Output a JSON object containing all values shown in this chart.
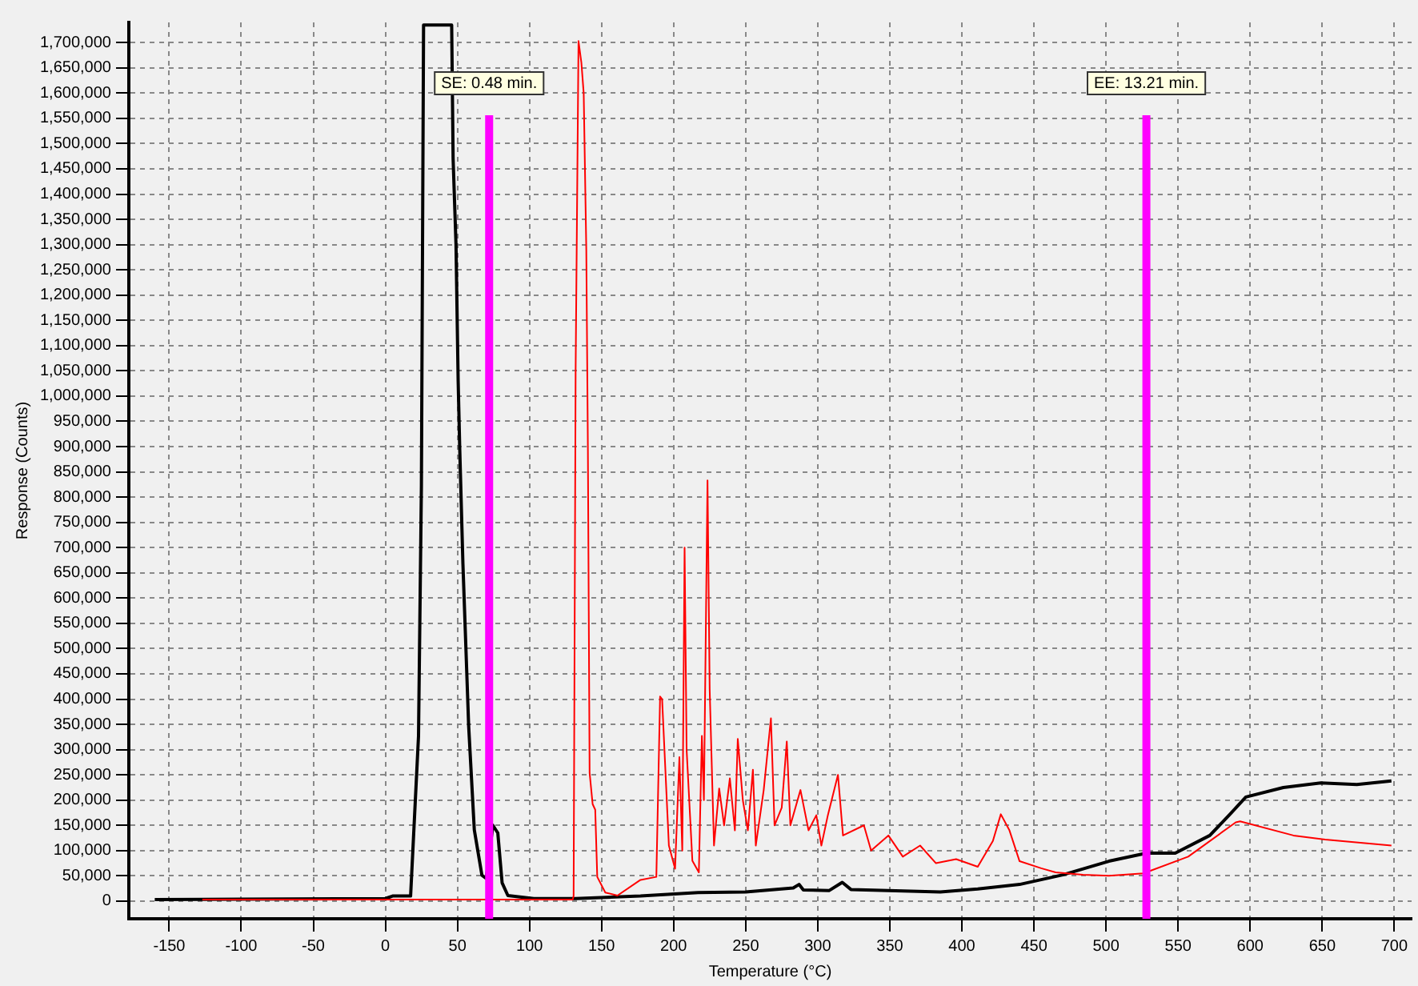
{
  "chart_data": {
    "type": "line",
    "xlabel": "Temperature (°C)",
    "ylabel": "Response (Counts)",
    "xlim": [
      -178,
      712
    ],
    "xticks": [
      -150,
      -100,
      -50,
      0,
      50,
      100,
      150,
      200,
      250,
      300,
      350,
      400,
      450,
      500,
      550,
      600,
      650,
      700
    ],
    "ylim": [
      -35000,
      1740000
    ],
    "yticks": [
      {
        "value": 0,
        "label": "0"
      },
      {
        "value": 50000,
        "label": "50,000"
      },
      {
        "value": 100000,
        "label": "100,000"
      },
      {
        "value": 150000,
        "label": "150,000"
      },
      {
        "value": 200000,
        "label": "200,000"
      },
      {
        "value": 250000,
        "label": "250,000"
      },
      {
        "value": 300000,
        "label": "300,000"
      },
      {
        "value": 350000,
        "label": "350,000"
      },
      {
        "value": 400000,
        "label": "400,000"
      },
      {
        "value": 450000,
        "label": "450,000"
      },
      {
        "value": 500000,
        "label": "500,000"
      },
      {
        "value": 550000,
        "label": "550,000"
      },
      {
        "value": 600000,
        "label": "600,000"
      },
      {
        "value": 650000,
        "label": "650,000"
      },
      {
        "value": 700000,
        "label": "700,000"
      },
      {
        "value": 750000,
        "label": "750,000"
      },
      {
        "value": 800000,
        "label": "800,000"
      },
      {
        "value": 850000,
        "label": "850,000"
      },
      {
        "value": 900000,
        "label": "900,000"
      },
      {
        "value": 950000,
        "label": "950,000"
      },
      {
        "value": 1000000,
        "label": "1,000,000"
      },
      {
        "value": 1050000,
        "label": "1,050,000"
      },
      {
        "value": 1100000,
        "label": "1,100,000"
      },
      {
        "value": 1150000,
        "label": "1,150,000"
      },
      {
        "value": 1200000,
        "label": "1,200,000"
      },
      {
        "value": 1250000,
        "label": "1,250,000"
      },
      {
        "value": 1300000,
        "label": "1,300,000"
      },
      {
        "value": 1350000,
        "label": "1,350,000"
      },
      {
        "value": 1400000,
        "label": "1,400,000"
      },
      {
        "value": 1450000,
        "label": "1,450,000"
      },
      {
        "value": 1500000,
        "label": "1,500,000"
      },
      {
        "value": 1550000,
        "label": "1,550,000"
      },
      {
        "value": 1600000,
        "label": "1,600,000"
      },
      {
        "value": 1650000,
        "label": "1,650,000"
      },
      {
        "value": 1700000,
        "label": "1,700,000"
      }
    ],
    "grid": true,
    "marker": "none",
    "ref_lines": [
      {
        "axis": "x",
        "value": 72,
        "color": "#ff00ff"
      },
      {
        "axis": "x",
        "value": 528,
        "color": "#ff00ff"
      }
    ],
    "annotations": [
      "SE: 0.48 min.",
      "EE: 13.21 min."
    ],
    "series": [
      {
        "color": "#ff0000",
        "x": [
          -127,
          0,
          60,
          130,
          130.6,
          132,
          134,
          136,
          137.6,
          139.4,
          140.5,
          141.7,
          143.8,
          145.6,
          147,
          152.6,
          161,
          177,
          188,
          190.6,
          192,
          196.7,
          201,
          204,
          206,
          207.6,
          209,
          213,
          217.5,
          219.6,
          221,
          223.5,
          225,
          228,
          231.6,
          235,
          239,
          242.5,
          244.5,
          248,
          251.5,
          255,
          257,
          262.5,
          267.5,
          270,
          275,
          278.5,
          281,
          288,
          293.6,
          299,
          302.5,
          307,
          314,
          317.5,
          332,
          337,
          349,
          359,
          371,
          382,
          396,
          411,
          421.5,
          427,
          433,
          440,
          455,
          465,
          484,
          502,
          526,
          557,
          590,
          593,
          630,
          652,
          698
        ],
        "values": [
          3000,
          3000,
          3000,
          3000,
          10000,
          1050000,
          1703000,
          1660000,
          1600000,
          1290000,
          900000,
          254000,
          192000,
          181000,
          48000,
          17000,
          11000,
          42000,
          48000,
          405000,
          400000,
          110000,
          64000,
          285000,
          100000,
          700000,
          300000,
          80000,
          57000,
          327000,
          200000,
          833000,
          420000,
          110000,
          223000,
          150000,
          243000,
          140000,
          321000,
          200000,
          140000,
          260000,
          110000,
          220000,
          362000,
          150000,
          185000,
          316000,
          150000,
          220000,
          140000,
          170000,
          110000,
          170000,
          250000,
          130000,
          150000,
          100000,
          130000,
          88000,
          110000,
          75000,
          83000,
          68000,
          119000,
          172000,
          140000,
          79000,
          65000,
          57000,
          52000,
          50000,
          55000,
          88000,
          156000,
          158000,
          130000,
          122000,
          110000
        ]
      },
      {
        "color": "#000000",
        "x": [
          -160,
          -100,
          0,
          5,
          17.5,
          23,
          25,
          26.5,
          46,
          47,
          49,
          50.5,
          51.6,
          53.8,
          57.8,
          61.7,
          67,
          70,
          74.6,
          78,
          81,
          85,
          103,
          132,
          177,
          217,
          250,
          283,
          287,
          290,
          308,
          317,
          323,
          385,
          411,
          440,
          470,
          502,
          528,
          548,
          572,
          586,
          597,
          623,
          649,
          674,
          698
        ],
        "values": [
          3000,
          4000,
          5000,
          10000,
          10000,
          327000,
          822000,
          1735000,
          1735000,
          1470000,
          1300000,
          1030000,
          895000,
          668000,
          346000,
          141000,
          51000,
          45000,
          150000,
          135000,
          36000,
          11000,
          5000,
          5000,
          10000,
          17000,
          18000,
          26000,
          33000,
          22000,
          21000,
          37000,
          23000,
          18000,
          24000,
          33000,
          52000,
          79000,
          95000,
          95000,
          130000,
          172000,
          206000,
          225000,
          234000,
          231000,
          238000
        ]
      }
    ]
  }
}
